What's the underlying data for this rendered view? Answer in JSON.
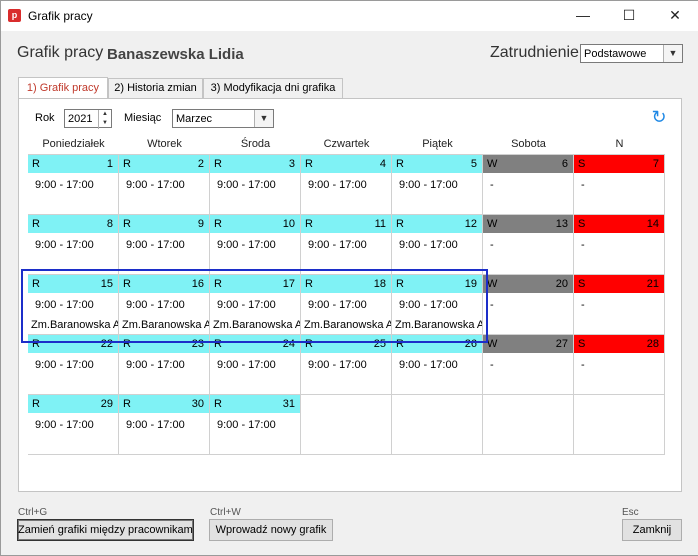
{
  "window": {
    "title": "Grafik pracy",
    "app_icon_letter": "p"
  },
  "header": {
    "title": "Grafik pracy",
    "employee_name": "Banaszewska Lidia",
    "employment_label": "Zatrudnienie",
    "employment_value": "Podstawowe"
  },
  "tabs": [
    {
      "label": "1) Grafik pracy",
      "active": true
    },
    {
      "label": "2) Historia zmian",
      "active": false
    },
    {
      "label": "3) Modyfikacja dni grafika",
      "active": false
    }
  ],
  "filters": {
    "year_label": "Rok",
    "year_value": "2021",
    "month_label": "Miesiąc",
    "month_value": "Marzec"
  },
  "calendar": {
    "day_headers": [
      "Poniedziałek",
      "Wtorek",
      "Środa",
      "Czwartek",
      "Piątek",
      "Sobota",
      "N"
    ],
    "colors": {
      "work": "#7ff2f5",
      "saturday": "#808080",
      "sunday": "#ff0000"
    },
    "weeks": [
      [
        {
          "type": "R",
          "day": "1",
          "hours": "9:00 - 17:00",
          "note": "",
          "kind": "work"
        },
        {
          "type": "R",
          "day": "2",
          "hours": "9:00 - 17:00",
          "note": "",
          "kind": "work"
        },
        {
          "type": "R",
          "day": "3",
          "hours": "9:00 - 17:00",
          "note": "",
          "kind": "work"
        },
        {
          "type": "R",
          "day": "4",
          "hours": "9:00 - 17:00",
          "note": "",
          "kind": "work"
        },
        {
          "type": "R",
          "day": "5",
          "hours": "9:00 - 17:00",
          "note": "",
          "kind": "work"
        },
        {
          "type": "W",
          "day": "6",
          "hours": "-",
          "note": "",
          "kind": "saturday"
        },
        {
          "type": "S",
          "day": "7",
          "hours": "-",
          "note": "",
          "kind": "sunday"
        }
      ],
      [
        {
          "type": "R",
          "day": "8",
          "hours": "9:00 - 17:00",
          "note": "",
          "kind": "work"
        },
        {
          "type": "R",
          "day": "9",
          "hours": "9:00 - 17:00",
          "note": "",
          "kind": "work"
        },
        {
          "type": "R",
          "day": "10",
          "hours": "9:00 - 17:00",
          "note": "",
          "kind": "work"
        },
        {
          "type": "R",
          "day": "11",
          "hours": "9:00 - 17:00",
          "note": "",
          "kind": "work"
        },
        {
          "type": "R",
          "day": "12",
          "hours": "9:00 - 17:00",
          "note": "",
          "kind": "work"
        },
        {
          "type": "W",
          "day": "13",
          "hours": "-",
          "note": "",
          "kind": "saturday"
        },
        {
          "type": "S",
          "day": "14",
          "hours": "-",
          "note": "",
          "kind": "sunday"
        }
      ],
      [
        {
          "type": "R",
          "day": "15",
          "hours": "9:00 - 17:00",
          "note": "Zm.Baranowska A",
          "kind": "work"
        },
        {
          "type": "R",
          "day": "16",
          "hours": "9:00 - 17:00",
          "note": "Zm.Baranowska A",
          "kind": "work"
        },
        {
          "type": "R",
          "day": "17",
          "hours": "9:00 - 17:00",
          "note": "Zm.Baranowska A",
          "kind": "work"
        },
        {
          "type": "R",
          "day": "18",
          "hours": "9:00 - 17:00",
          "note": "Zm.Baranowska A",
          "kind": "work"
        },
        {
          "type": "R",
          "day": "19",
          "hours": "9:00 - 17:00",
          "note": "Zm.Baranowska A",
          "kind": "work"
        },
        {
          "type": "W",
          "day": "20",
          "hours": "-",
          "note": "",
          "kind": "saturday"
        },
        {
          "type": "S",
          "day": "21",
          "hours": "-",
          "note": "",
          "kind": "sunday"
        }
      ],
      [
        {
          "type": "R",
          "day": "22",
          "hours": "9:00 - 17:00",
          "note": "",
          "kind": "work"
        },
        {
          "type": "R",
          "day": "23",
          "hours": "9:00 - 17:00",
          "note": "",
          "kind": "work"
        },
        {
          "type": "R",
          "day": "24",
          "hours": "9:00 - 17:00",
          "note": "",
          "kind": "work"
        },
        {
          "type": "R",
          "day": "25",
          "hours": "9:00 - 17:00",
          "note": "",
          "kind": "work"
        },
        {
          "type": "R",
          "day": "26",
          "hours": "9:00 - 17:00",
          "note": "",
          "kind": "work"
        },
        {
          "type": "W",
          "day": "27",
          "hours": "-",
          "note": "",
          "kind": "saturday"
        },
        {
          "type": "S",
          "day": "28",
          "hours": "-",
          "note": "",
          "kind": "sunday"
        }
      ],
      [
        {
          "type": "R",
          "day": "29",
          "hours": "9:00 - 17:00",
          "note": "",
          "kind": "work"
        },
        {
          "type": "R",
          "day": "30",
          "hours": "9:00 - 17:00",
          "note": "",
          "kind": "work"
        },
        {
          "type": "R",
          "day": "31",
          "hours": "9:00 - 17:00",
          "note": "",
          "kind": "work"
        },
        null,
        null,
        null,
        null
      ]
    ]
  },
  "footer": {
    "swap_shortcut": "Ctrl+G",
    "swap_label": "Zamień grafiki między pracownikami",
    "new_shortcut": "Ctrl+W",
    "new_label": "Wprowadź nowy grafik",
    "close_shortcut": "Esc",
    "close_label": "Zamknij"
  }
}
